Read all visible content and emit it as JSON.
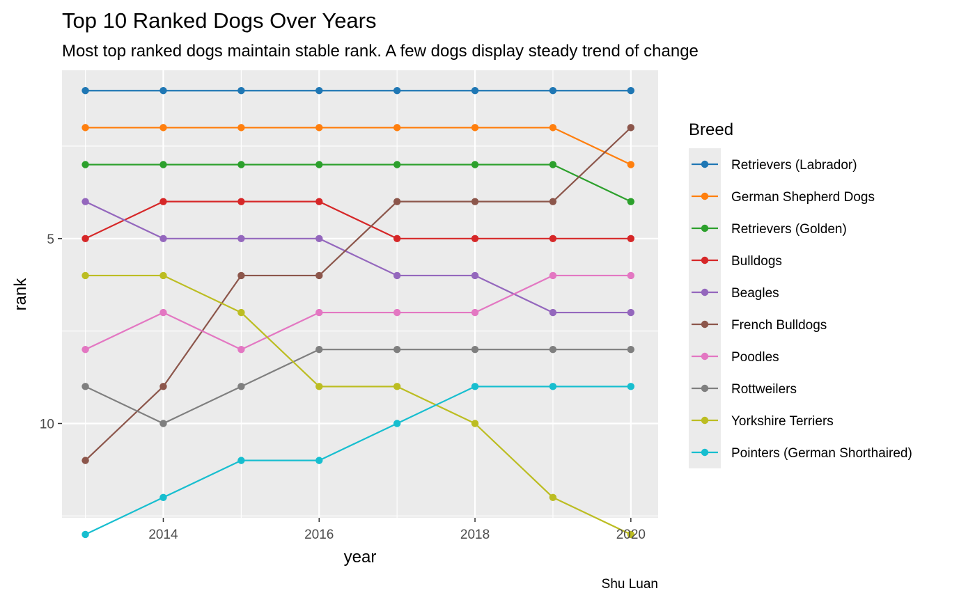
{
  "chart_data": {
    "type": "line",
    "title": "Top 10 Ranked Dogs Over Years",
    "subtitle": "Most top ranked dogs maintain stable rank. A few dogs display steady trend of change",
    "xlabel": "year",
    "ylabel": "rank",
    "caption": "Shu Luan",
    "x": [
      2013,
      2014,
      2015,
      2016,
      2017,
      2018,
      2019,
      2020
    ],
    "xlim": [
      2012.7,
      2020.35
    ],
    "ylim": [
      12.55,
      0.45
    ],
    "y_reversed": true,
    "x_ticks": [
      2014,
      2016,
      2018,
      2020
    ],
    "y_ticks": [
      5,
      10
    ],
    "y_minor_ticks": [
      2.5,
      7.5,
      12.5
    ],
    "x_minor_ticks": [
      2013,
      2015,
      2017,
      2019
    ],
    "grid": true,
    "legend_title": "Breed",
    "legend_position": "right",
    "series": [
      {
        "name": "Retrievers (Labrador)",
        "color": "#1f77b4",
        "values": [
          1,
          1,
          1,
          1,
          1,
          1,
          1,
          1
        ]
      },
      {
        "name": "German Shepherd Dogs",
        "color": "#ff7f0e",
        "values": [
          2,
          2,
          2,
          2,
          2,
          2,
          2,
          3
        ]
      },
      {
        "name": "Retrievers (Golden)",
        "color": "#2ca02c",
        "values": [
          3,
          3,
          3,
          3,
          3,
          3,
          3,
          4
        ]
      },
      {
        "name": "Bulldogs",
        "color": "#d62728",
        "values": [
          5,
          4,
          4,
          4,
          5,
          5,
          5,
          5
        ]
      },
      {
        "name": "Beagles",
        "color": "#9467bd",
        "values": [
          4,
          5,
          5,
          5,
          6,
          6,
          7,
          7
        ]
      },
      {
        "name": "French Bulldogs",
        "color": "#8c564b",
        "values": [
          11,
          9,
          6,
          6,
          4,
          4,
          4,
          2
        ]
      },
      {
        "name": "Poodles",
        "color": "#e377c2",
        "values": [
          8,
          7,
          8,
          7,
          7,
          7,
          6,
          6
        ]
      },
      {
        "name": "Rottweilers",
        "color": "#7f7f7f",
        "values": [
          9,
          10,
          9,
          8,
          8,
          8,
          8,
          8
        ]
      },
      {
        "name": "Yorkshire Terriers",
        "color": "#bcbd22",
        "values": [
          6,
          6,
          7,
          9,
          9,
          10,
          12,
          13
        ]
      },
      {
        "name": "Pointers (German Shorthaired)",
        "color": "#17becf",
        "values": [
          13,
          12,
          11,
          11,
          10,
          9,
          9,
          9
        ]
      }
    ]
  }
}
